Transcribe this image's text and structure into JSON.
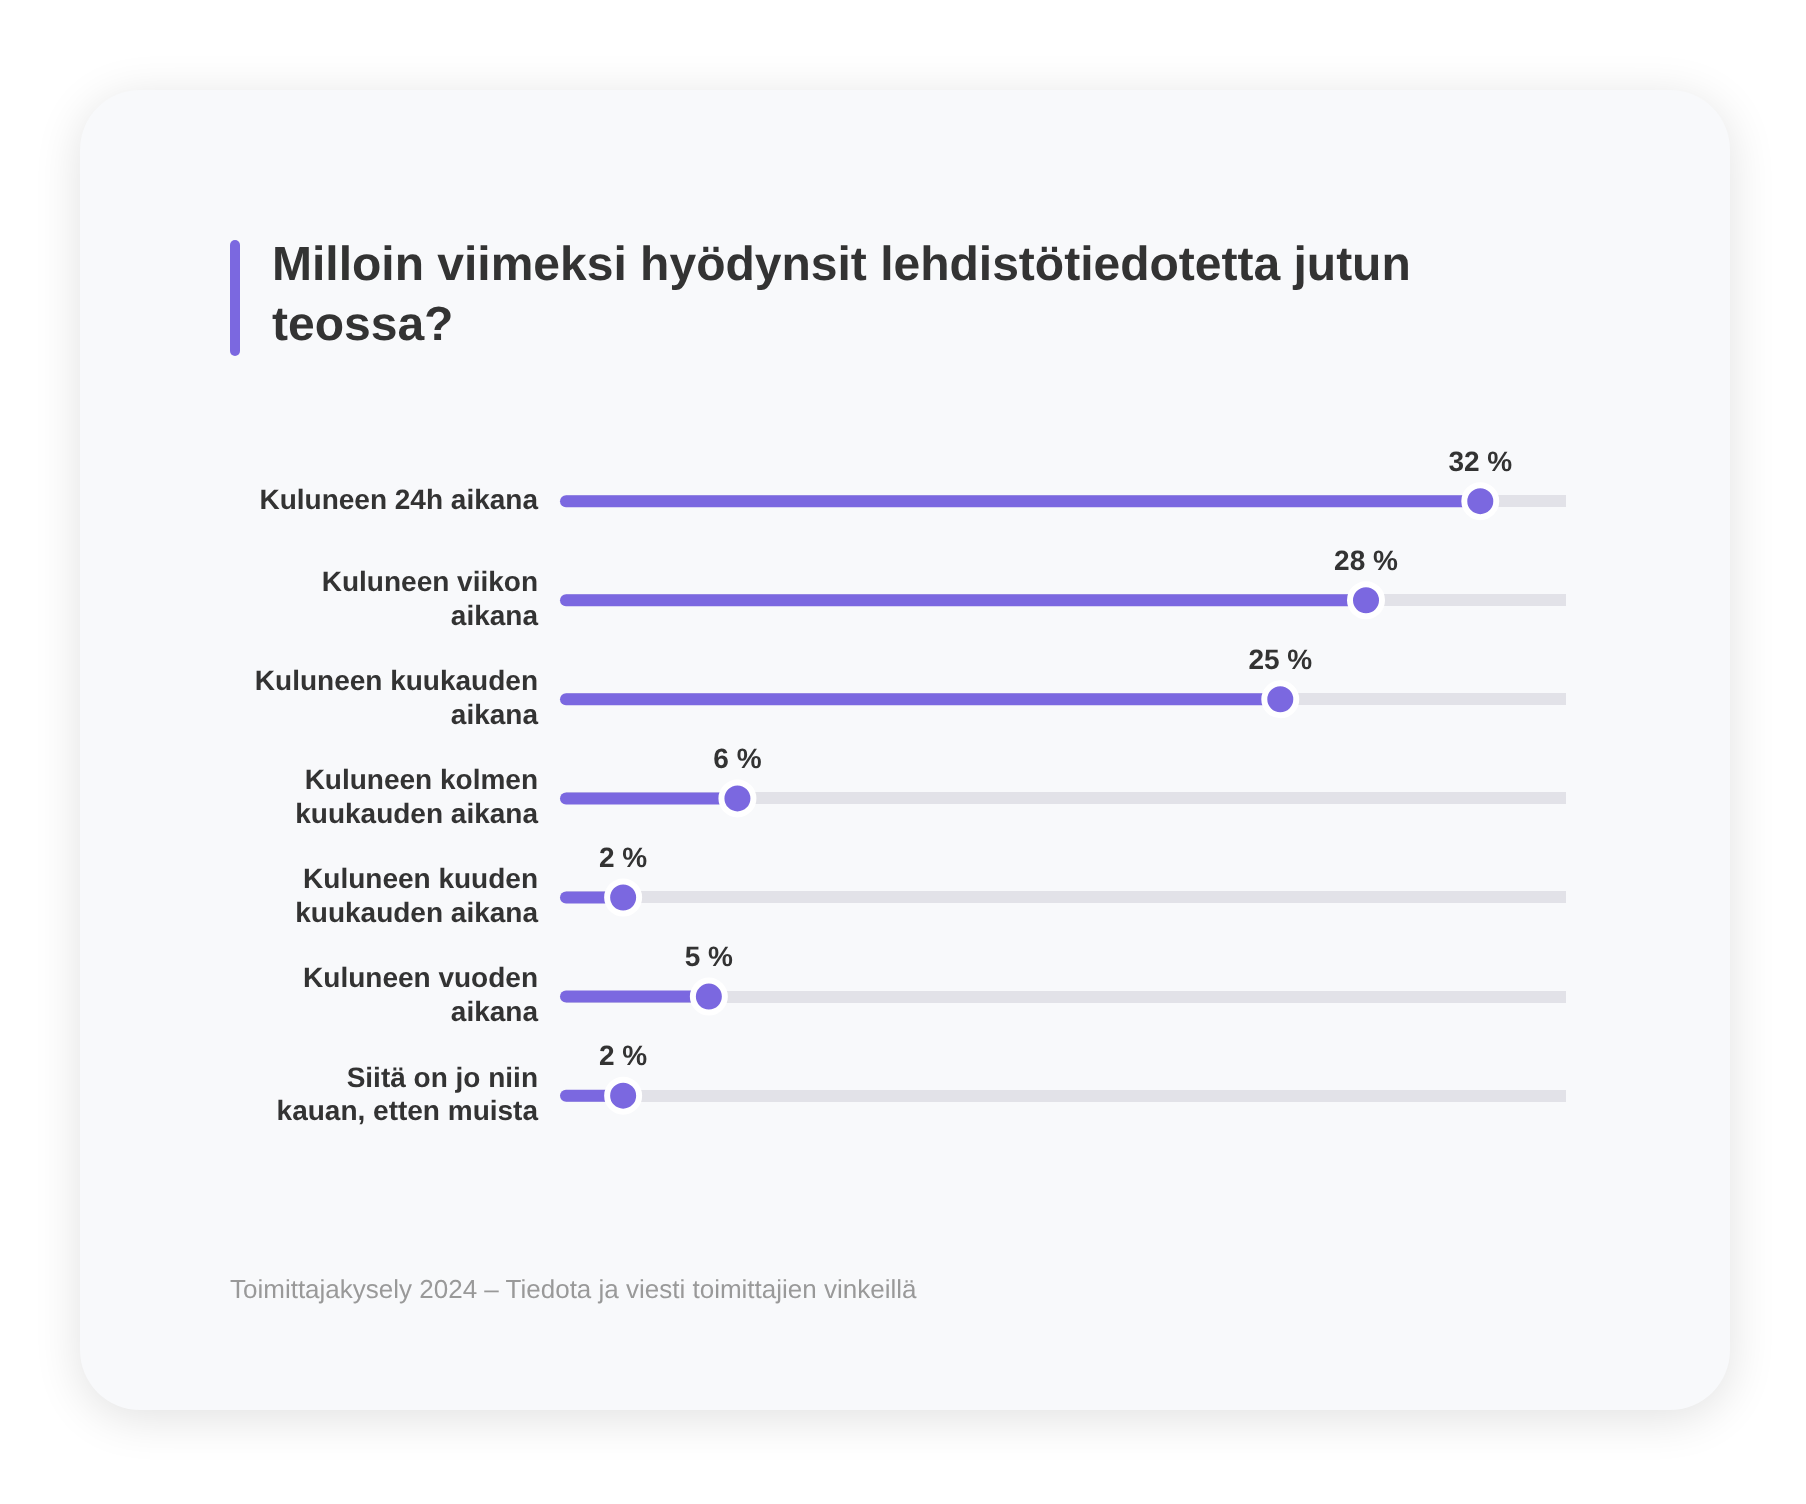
{
  "chart_data": {
    "type": "lollipop",
    "orientation": "horizontal",
    "title": "Milloin viimeksi hyödynsit lehdistötiedotetta jutun teossa?",
    "categories": [
      "Kuluneen 24h aikana",
      "Kuluneen viikon aikana",
      "Kuluneen kuukauden aikana",
      "Kuluneen kolmen kuukauden aikana",
      "Kuluneen kuuden kuukauden aikana",
      "Kuluneen vuoden aikana",
      "Siitä on jo niin kauan, etten muista"
    ],
    "values": [
      32,
      28,
      25,
      6,
      2,
      5,
      2
    ],
    "value_labels": [
      "32 %",
      "28 %",
      "25 %",
      "6 %",
      "2 %",
      "5 %",
      "2 %"
    ],
    "color": "#7b68e0",
    "tick_labels": "y",
    "grid": "y",
    "legend": false,
    "marker": "circle",
    "annotations": [
      "Toimittajakysely 2024 – Tiedota ja viesti toimittajien vinkeillä"
    ]
  }
}
